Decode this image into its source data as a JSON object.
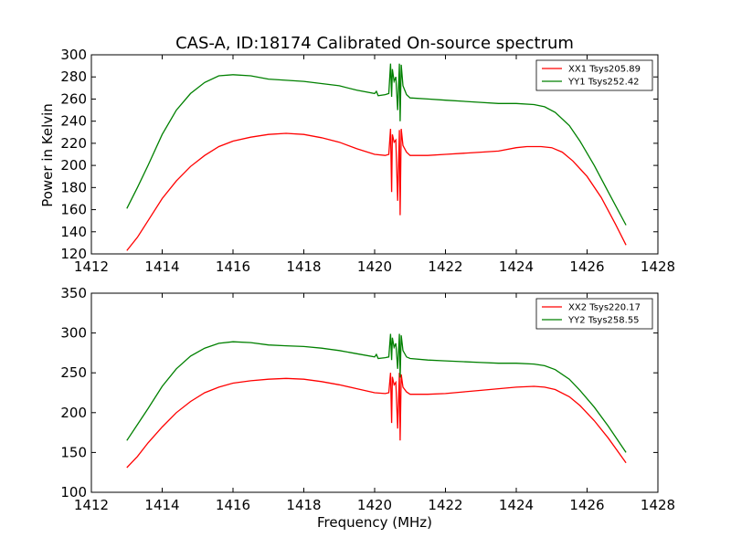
{
  "chart_data": [
    {
      "type": "line",
      "title": "CAS-A, ID:18174 Calibrated On-source spectrum",
      "xlabel": "",
      "ylabel": "Power in Kelvin",
      "xlim": [
        1412,
        1428
      ],
      "ylim": [
        120,
        300
      ],
      "x_ticks": [
        "1412",
        "1414",
        "1416",
        "1418",
        "1420",
        "1422",
        "1424",
        "1426",
        "1428"
      ],
      "y_ticks": [
        "120",
        "140",
        "160",
        "180",
        "200",
        "220",
        "240",
        "260",
        "280",
        "300"
      ],
      "legend_position": "top-right",
      "series": [
        {
          "name": "XX1 Tsys205.89",
          "color": "#ff0000",
          "points": [
            [
              1413.0,
              123
            ],
            [
              1413.3,
              135
            ],
            [
              1413.6,
              150
            ],
            [
              1414.0,
              170
            ],
            [
              1414.4,
              186
            ],
            [
              1414.8,
              199
            ],
            [
              1415.2,
              209
            ],
            [
              1415.6,
              217
            ],
            [
              1416.0,
              222
            ],
            [
              1416.5,
              225.5
            ],
            [
              1417.0,
              228
            ],
            [
              1417.5,
              229
            ],
            [
              1418.0,
              228
            ],
            [
              1418.5,
              225
            ],
            [
              1419.0,
              221
            ],
            [
              1419.5,
              215
            ],
            [
              1420.0,
              210
            ],
            [
              1420.3,
              209
            ],
            [
              1420.4,
              210
            ],
            [
              1420.45,
              233
            ],
            [
              1420.48,
              176
            ],
            [
              1420.5,
              228
            ],
            [
              1420.55,
              221
            ],
            [
              1420.6,
              223
            ],
            [
              1420.65,
              168
            ],
            [
              1420.7,
              232
            ],
            [
              1420.72,
              155
            ],
            [
              1420.75,
              233
            ],
            [
              1420.8,
              218
            ],
            [
              1420.9,
              212
            ],
            [
              1421.0,
              209
            ],
            [
              1421.5,
              209
            ],
            [
              1422.0,
              210
            ],
            [
              1422.5,
              211
            ],
            [
              1423.0,
              212
            ],
            [
              1423.5,
              213
            ],
            [
              1424.0,
              216
            ],
            [
              1424.3,
              217
            ],
            [
              1424.7,
              217
            ],
            [
              1425.0,
              216
            ],
            [
              1425.3,
              212
            ],
            [
              1425.6,
              204
            ],
            [
              1426.0,
              190
            ],
            [
              1426.4,
              171
            ],
            [
              1426.8,
              147
            ],
            [
              1427.1,
              128
            ]
          ]
        },
        {
          "name": "YY1 Tsys252.42",
          "color": "#008000",
          "points": [
            [
              1413.0,
              161
            ],
            [
              1413.3,
              180
            ],
            [
              1413.6,
              200
            ],
            [
              1414.0,
              228
            ],
            [
              1414.4,
              250
            ],
            [
              1414.8,
              265
            ],
            [
              1415.2,
              275
            ],
            [
              1415.6,
              281
            ],
            [
              1416.0,
              282
            ],
            [
              1416.5,
              281
            ],
            [
              1417.0,
              278
            ],
            [
              1417.5,
              277
            ],
            [
              1418.0,
              276
            ],
            [
              1418.5,
              274
            ],
            [
              1419.0,
              272
            ],
            [
              1419.5,
              268
            ],
            [
              1420.0,
              265
            ],
            [
              1420.05,
              267
            ],
            [
              1420.1,
              263
            ],
            [
              1420.3,
              264
            ],
            [
              1420.4,
              265
            ],
            [
              1420.45,
              292
            ],
            [
              1420.48,
              262
            ],
            [
              1420.5,
              287
            ],
            [
              1420.55,
              276
            ],
            [
              1420.6,
              280
            ],
            [
              1420.65,
              250
            ],
            [
              1420.7,
              292
            ],
            [
              1420.72,
              240
            ],
            [
              1420.75,
              291
            ],
            [
              1420.8,
              272
            ],
            [
              1420.9,
              264
            ],
            [
              1421.0,
              261
            ],
            [
              1421.5,
              260
            ],
            [
              1422.0,
              259
            ],
            [
              1422.5,
              258
            ],
            [
              1423.0,
              257
            ],
            [
              1423.5,
              256
            ],
            [
              1424.0,
              256
            ],
            [
              1424.5,
              255
            ],
            [
              1424.8,
              253
            ],
            [
              1425.1,
              248
            ],
            [
              1425.5,
              236
            ],
            [
              1425.8,
              222
            ],
            [
              1426.2,
              200
            ],
            [
              1426.6,
              176
            ],
            [
              1427.1,
              146
            ]
          ]
        }
      ]
    },
    {
      "type": "line",
      "title": "",
      "xlabel": "Frequency (MHz)",
      "ylabel": "",
      "xlim": [
        1412,
        1428
      ],
      "ylim": [
        100,
        350
      ],
      "x_ticks": [
        "1412",
        "1414",
        "1416",
        "1418",
        "1420",
        "1422",
        "1424",
        "1426",
        "1428"
      ],
      "y_ticks": [
        "100",
        "150",
        "200",
        "250",
        "300",
        "350"
      ],
      "legend_position": "top-right",
      "series": [
        {
          "name": "XX2 Tsys220.17",
          "color": "#ff0000",
          "points": [
            [
              1413.0,
              131
            ],
            [
              1413.3,
              145
            ],
            [
              1413.6,
              162
            ],
            [
              1414.0,
              182
            ],
            [
              1414.4,
              200
            ],
            [
              1414.8,
              214
            ],
            [
              1415.2,
              225
            ],
            [
              1415.6,
              232
            ],
            [
              1416.0,
              237
            ],
            [
              1416.5,
              240
            ],
            [
              1417.0,
              242
            ],
            [
              1417.5,
              243
            ],
            [
              1418.0,
              242
            ],
            [
              1418.5,
              239
            ],
            [
              1419.0,
              235
            ],
            [
              1419.5,
              230
            ],
            [
              1420.0,
              225
            ],
            [
              1420.3,
              224
            ],
            [
              1420.4,
              225
            ],
            [
              1420.45,
              250
            ],
            [
              1420.48,
              187
            ],
            [
              1420.5,
              245
            ],
            [
              1420.55,
              235
            ],
            [
              1420.6,
              238
            ],
            [
              1420.65,
              180
            ],
            [
              1420.7,
              250
            ],
            [
              1420.72,
              165
            ],
            [
              1420.75,
              248
            ],
            [
              1420.8,
              232
            ],
            [
              1420.9,
              226
            ],
            [
              1421.0,
              223
            ],
            [
              1421.5,
              223
            ],
            [
              1422.0,
              224
            ],
            [
              1422.5,
              226
            ],
            [
              1423.0,
              228
            ],
            [
              1423.5,
              230
            ],
            [
              1424.0,
              232
            ],
            [
              1424.5,
              233
            ],
            [
              1424.8,
              232
            ],
            [
              1425.1,
              229
            ],
            [
              1425.5,
              220
            ],
            [
              1425.8,
              209
            ],
            [
              1426.2,
              190
            ],
            [
              1426.6,
              168
            ],
            [
              1427.1,
              137
            ]
          ]
        },
        {
          "name": "YY2 Tsys258.55",
          "color": "#008000",
          "points": [
            [
              1413.0,
              165
            ],
            [
              1413.3,
              185
            ],
            [
              1413.6,
              205
            ],
            [
              1414.0,
              233
            ],
            [
              1414.4,
              255
            ],
            [
              1414.8,
              271
            ],
            [
              1415.2,
              281
            ],
            [
              1415.6,
              287
            ],
            [
              1416.0,
              289
            ],
            [
              1416.5,
              288
            ],
            [
              1417.0,
              285
            ],
            [
              1417.5,
              284
            ],
            [
              1418.0,
              283
            ],
            [
              1418.5,
              281
            ],
            [
              1419.0,
              278
            ],
            [
              1419.5,
              274
            ],
            [
              1420.0,
              270
            ],
            [
              1420.05,
              273
            ],
            [
              1420.1,
              268
            ],
            [
              1420.3,
              269
            ],
            [
              1420.4,
              270
            ],
            [
              1420.45,
              299
            ],
            [
              1420.48,
              266
            ],
            [
              1420.5,
              294
            ],
            [
              1420.55,
              282
            ],
            [
              1420.6,
              287
            ],
            [
              1420.65,
              255
            ],
            [
              1420.7,
              299
            ],
            [
              1420.72,
              244
            ],
            [
              1420.75,
              297
            ],
            [
              1420.8,
              278
            ],
            [
              1420.9,
              270
            ],
            [
              1421.0,
              268
            ],
            [
              1421.5,
              266
            ],
            [
              1422.0,
              265
            ],
            [
              1422.5,
              264
            ],
            [
              1423.0,
              263
            ],
            [
              1423.5,
              262
            ],
            [
              1424.0,
              262
            ],
            [
              1424.5,
              261
            ],
            [
              1424.8,
              259
            ],
            [
              1425.1,
              254
            ],
            [
              1425.5,
              242
            ],
            [
              1425.8,
              228
            ],
            [
              1426.2,
              207
            ],
            [
              1426.6,
              183
            ],
            [
              1427.1,
              150
            ]
          ]
        }
      ]
    }
  ]
}
